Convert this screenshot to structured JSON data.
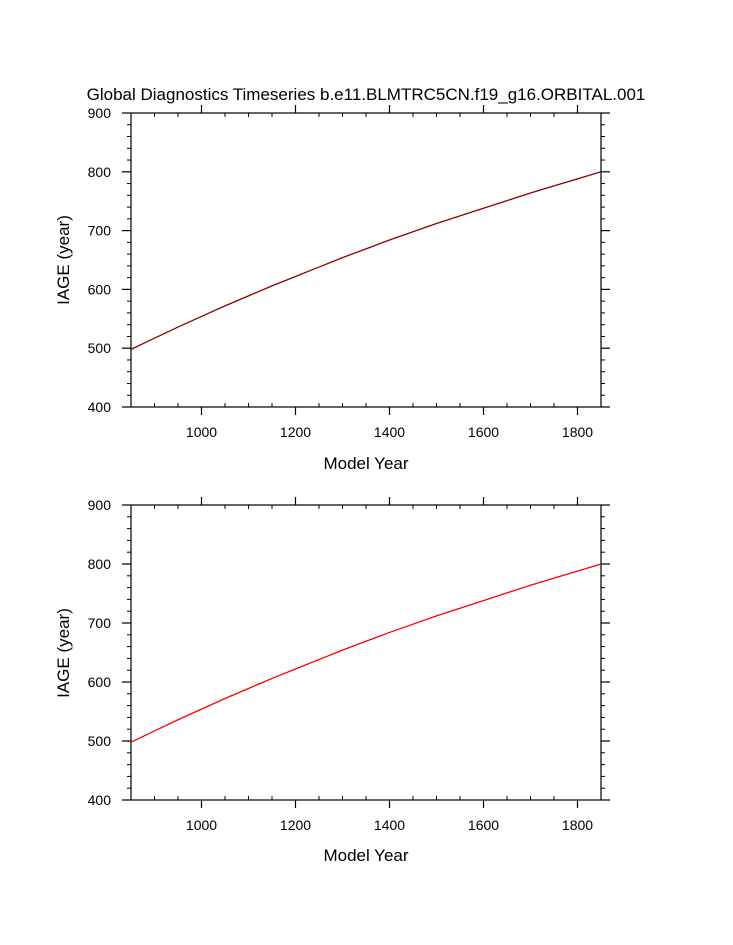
{
  "figure_title": "Global Diagnostics Timeseries b.e11.BLMTRC5CN.f19_g16.ORBITAL.001",
  "chart_data": [
    {
      "type": "line",
      "title": "Global Diagnostics Timeseries b.e11.BLMTRC5CN.f19_g16.ORBITAL.001",
      "xlabel": "Model Year",
      "ylabel": "IAGE (year)",
      "xlim": [
        850,
        1850
      ],
      "ylim": [
        400,
        900
      ],
      "xticks": [
        1000,
        1200,
        1400,
        1600,
        1800
      ],
      "yticks": [
        400,
        500,
        600,
        700,
        800,
        900
      ],
      "grid": false,
      "series": [
        {
          "color": "#8b0000",
          "x": [
            850,
            900,
            950,
            1000,
            1050,
            1100,
            1150,
            1200,
            1250,
            1300,
            1350,
            1400,
            1450,
            1500,
            1550,
            1600,
            1650,
            1700,
            1750,
            1800,
            1850
          ],
          "y": [
            498,
            517,
            536,
            554,
            572,
            589,
            606,
            622,
            638,
            654,
            669,
            684,
            698,
            712,
            725,
            738,
            751,
            764,
            776,
            788,
            800
          ]
        }
      ]
    },
    {
      "type": "line",
      "xlabel": "Model Year",
      "ylabel": "IAGE (year)",
      "xlim": [
        850,
        1850
      ],
      "ylim": [
        400,
        900
      ],
      "xticks": [
        1000,
        1200,
        1400,
        1600,
        1800
      ],
      "yticks": [
        400,
        500,
        600,
        700,
        800,
        900
      ],
      "grid": false,
      "series": [
        {
          "color": "#ff0000",
          "x": [
            850,
            900,
            950,
            1000,
            1050,
            1100,
            1150,
            1200,
            1250,
            1300,
            1350,
            1400,
            1450,
            1500,
            1550,
            1600,
            1650,
            1700,
            1750,
            1800,
            1850
          ],
          "y": [
            498,
            517,
            536,
            554,
            572,
            589,
            606,
            622,
            638,
            654,
            669,
            684,
            698,
            712,
            725,
            738,
            751,
            764,
            776,
            788,
            800
          ]
        }
      ]
    }
  ]
}
